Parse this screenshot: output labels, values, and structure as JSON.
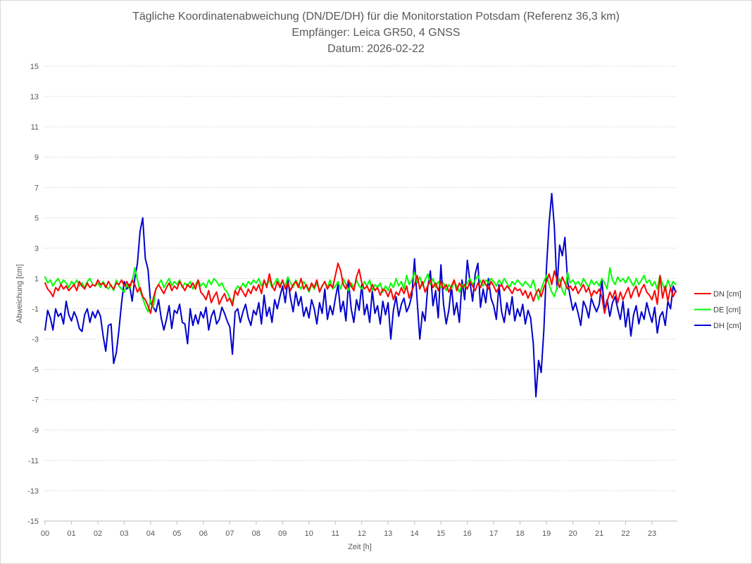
{
  "chart_data": {
    "type": "line",
    "title_lines": [
      "Tägliche Koordinatenabweichung (DN/DE/DH) für die Monitorstation Potsdam (Referenz 36,3 km)",
      "Empfänger: Leica GR50, 4 GNSS",
      "Datum: 2026-02-22"
    ],
    "xlabel": "Zeit [h]",
    "ylabel": "Abweichung [cm]",
    "xlim": [
      0,
      24
    ],
    "ylim": [
      -15,
      15
    ],
    "y_ticks": [
      -15,
      -13,
      -11,
      -9,
      -7,
      -5,
      -3,
      -1,
      1,
      3,
      5,
      7,
      9,
      11,
      13,
      15
    ],
    "x_ticks": [
      0,
      1,
      2,
      3,
      4,
      5,
      6,
      7,
      8,
      9,
      10,
      11,
      12,
      13,
      14,
      15,
      16,
      17,
      18,
      19,
      20,
      21,
      22,
      23
    ],
    "x_tick_labels": [
      "00",
      "01",
      "02",
      "03",
      "04",
      "05",
      "06",
      "07",
      "08",
      "09",
      "10",
      "11",
      "12",
      "13",
      "14",
      "15",
      "16",
      "17",
      "18",
      "19",
      "20",
      "21",
      "22",
      "23"
    ],
    "grid": "horizontal",
    "legend": "right",
    "x_start": 0,
    "x_step": 0.1,
    "series": [
      {
        "name": "DN [cm]",
        "color": "#ff0000",
        "values": [
          0.7,
          0.3,
          0.1,
          -0.2,
          0.4,
          0.2,
          0.6,
          0.3,
          0.5,
          0.2,
          0.4,
          0.6,
          0.2,
          0.8,
          0.5,
          0.3,
          0.7,
          0.4,
          0.6,
          0.5,
          0.9,
          0.6,
          0.7,
          0.4,
          0.8,
          0.5,
          0.3,
          0.7,
          0.6,
          0.9,
          0.5,
          0.8,
          0.4,
          0.9,
          0.6,
          0.1,
          0.4,
          -0.2,
          -0.4,
          -0.8,
          -1.3,
          -0.3,
          0.3,
          0.6,
          0.3,
          0.0,
          0.4,
          0.7,
          0.2,
          0.5,
          0.3,
          0.8,
          0.5,
          0.2,
          0.6,
          0.4,
          0.7,
          0.3,
          0.9,
          0.1,
          -0.1,
          -0.4,
          0.2,
          -0.6,
          -0.2,
          0.1,
          -0.7,
          -0.3,
          0.0,
          -0.5,
          -0.3,
          -0.8,
          0.2,
          -0.1,
          0.4,
          0.1,
          -0.2,
          0.3,
          0.0,
          0.5,
          0.2,
          0.6,
          0.0,
          0.9,
          0.4,
          1.3,
          0.5,
          0.2,
          0.8,
          0.4,
          0.9,
          0.3,
          0.7,
          0.2,
          0.6,
          0.8,
          0.4,
          1.0,
          0.3,
          0.6,
          0.2,
          0.7,
          0.4,
          0.9,
          0.1,
          0.5,
          0.8,
          0.3,
          0.6,
          0.4,
          1.2,
          2.0,
          1.5,
          0.6,
          0.3,
          0.9,
          0.5,
          0.2,
          1.1,
          1.6,
          0.7,
          0.3,
          0.5,
          0.1,
          0.6,
          0.2,
          0.4,
          -0.1,
          0.3,
          0.2,
          -0.2,
          0.3,
          -0.4,
          0.1,
          -0.1,
          0.4,
          0.0,
          0.5,
          -0.3,
          0.2,
          0.6,
          1.2,
          0.3,
          0.8,
          0.1,
          0.5,
          0.9,
          0.4,
          0.7,
          0.2,
          0.8,
          0.3,
          0.6,
          0.1,
          0.5,
          0.9,
          0.2,
          0.7,
          0.4,
          0.6,
          0.3,
          0.8,
          0.5,
          0.2,
          0.7,
          0.4,
          0.9,
          0.6,
          0.3,
          0.8,
          0.5,
          0.1,
          0.4,
          0.6,
          0.2,
          0.5,
          0.3,
          0.0,
          0.4,
          0.2,
          0.3,
          -0.1,
          0.2,
          -0.3,
          0.1,
          -0.5,
          0.0,
          0.3,
          -0.2,
          0.4,
          0.8,
          1.3,
          0.6,
          1.5,
          0.9,
          0.4,
          1.1,
          0.7,
          0.3,
          0.5,
          0.2,
          0.5,
          0.0,
          0.3,
          0.6,
          0.1,
          0.4,
          -0.2,
          0.2,
          0.0,
          0.3,
          -0.2,
          -1.3,
          -0.5,
          0.1,
          -0.3,
          0.2,
          -0.6,
          0.1,
          -0.4,
          0.0,
          0.4,
          -0.3,
          0.2,
          0.5,
          -0.2,
          0.3,
          0.6,
          0.1,
          -0.1,
          -0.4,
          0.2,
          -0.7,
          1.2,
          -0.3,
          0.5,
          -0.5,
          0.4,
          -0.2,
          0.2
        ]
      },
      {
        "name": "DE [cm]",
        "color": "#00ff00",
        "values": [
          1.1,
          0.7,
          0.9,
          0.5,
          0.8,
          1.0,
          0.6,
          0.9,
          0.7,
          0.4,
          0.8,
          0.6,
          0.9,
          0.5,
          0.7,
          0.4,
          0.8,
          1.0,
          0.6,
          0.5,
          0.7,
          0.4,
          0.8,
          0.5,
          0.3,
          0.6,
          0.2,
          0.9,
          0.5,
          0.3,
          0.1,
          0.6,
          0.3,
          0.8,
          1.7,
          0.9,
          0.2,
          -0.3,
          -0.8,
          -1.2,
          -0.4,
          -0.9,
          0.3,
          0.6,
          0.9,
          0.4,
          0.7,
          1.0,
          0.5,
          0.8,
          0.6,
          0.9,
          0.4,
          0.7,
          0.5,
          0.8,
          0.3,
          0.6,
          0.9,
          0.5,
          0.7,
          0.4,
          0.9,
          0.6,
          1.0,
          0.8,
          0.5,
          0.7,
          0.3,
          0.1,
          -0.3,
          -0.6,
          0.2,
          0.5,
          0.3,
          0.7,
          0.4,
          0.8,
          0.6,
          0.9,
          0.7,
          1.0,
          0.5,
          0.8,
          0.6,
          0.9,
          0.4,
          0.7,
          1.0,
          0.6,
          0.8,
          0.5,
          1.1,
          0.7,
          0.4,
          0.9,
          0.6,
          0.3,
          0.8,
          0.5,
          0.1,
          0.6,
          0.3,
          0.7,
          0.2,
          0.5,
          0.8,
          0.4,
          0.9,
          0.3,
          0.5,
          0.8,
          0.3,
          1.0,
          0.6,
          0.2,
          0.7,
          0.4,
          0.9,
          0.5,
          0.3,
          0.8,
          0.5,
          0.9,
          0.2,
          0.6,
          0.4,
          0.7,
          0.1,
          0.5,
          0.2,
          0.7,
          0.4,
          1.0,
          0.5,
          0.8,
          0.3,
          1.2,
          0.6,
          0.9,
          1.4,
          0.7,
          1.1,
          0.5,
          0.9,
          1.3,
          0.6,
          1.0,
          0.4,
          0.8,
          0.4,
          0.7,
          0.2,
          0.6,
          0.3,
          0.8,
          0.5,
          0.1,
          0.6,
          0.4,
          0.7,
          1.0,
          0.6,
          0.9,
          1.2,
          0.8,
          0.5,
          0.9,
          0.7,
          1.0,
          0.8,
          0.5,
          0.9,
          0.6,
          1.0,
          0.7,
          0.4,
          0.8,
          0.6,
          0.9,
          0.7,
          0.5,
          0.8,
          0.6,
          0.4,
          0.9,
          0.2,
          -0.4,
          0.3,
          0.8,
          1.2,
          0.6,
          0.1,
          -0.2,
          0.4,
          1.0,
          0.2,
          -0.1,
          1.4,
          0.7,
          0.9,
          0.6,
          0.8,
          0.5,
          1.0,
          0.7,
          0.4,
          0.9,
          0.6,
          0.8,
          0.5,
          1.0,
          0.7,
          0.3,
          1.7,
          0.9,
          0.6,
          1.1,
          0.8,
          1.0,
          0.7,
          1.1,
          0.8,
          0.5,
          1.0,
          0.6,
          0.9,
          1.2,
          0.7,
          0.9,
          0.5,
          0.8,
          0.3,
          1.2,
          0.6,
          0.2,
          0.9,
          0.4,
          0.8,
          0.6
        ]
      },
      {
        "name": "DH [cm]",
        "color": "#0000cc",
        "values": [
          -2.4,
          -1.1,
          -1.6,
          -2.4,
          -1.0,
          -1.5,
          -1.3,
          -2.0,
          -0.5,
          -1.4,
          -1.8,
          -1.2,
          -1.6,
          -2.3,
          -2.5,
          -1.4,
          -1.0,
          -1.9,
          -1.2,
          -1.6,
          -1.1,
          -1.5,
          -2.8,
          -3.8,
          -2.1,
          -2.0,
          -4.6,
          -3.9,
          -2.4,
          -0.6,
          0.8,
          0.3,
          0.6,
          -0.5,
          1.0,
          2.0,
          4.1,
          5.0,
          2.3,
          1.6,
          -0.6,
          -0.9,
          -1.2,
          -0.4,
          -1.6,
          -2.4,
          -1.7,
          -0.8,
          -2.3,
          -1.1,
          -1.3,
          -0.7,
          -1.9,
          -2.0,
          -3.3,
          -1.0,
          -2.1,
          -1.4,
          -2.0,
          -1.2,
          -1.6,
          -0.9,
          -2.4,
          -1.5,
          -1.1,
          -2.0,
          -1.7,
          -0.9,
          -1.3,
          -1.8,
          -2.2,
          -4.0,
          -1.2,
          -1.0,
          -1.9,
          -1.2,
          -0.7,
          -1.6,
          -2.1,
          -1.1,
          -1.4,
          -0.6,
          -2.0,
          -0.1,
          -1.5,
          -0.9,
          -1.9,
          -0.4,
          -1.0,
          -0.2,
          0.5,
          -0.6,
          0.9,
          -0.3,
          -1.2,
          0.1,
          -0.8,
          -0.2,
          -1.5,
          -0.9,
          -1.6,
          -0.4,
          -1.0,
          -2.0,
          -0.6,
          -1.3,
          0.3,
          -1.7,
          -0.8,
          -1.4,
          -0.3,
          0.6,
          -1.2,
          -0.5,
          -1.8,
          0.8,
          -1.0,
          -1.9,
          -0.4,
          -1.1,
          0.6,
          -1.4,
          -0.7,
          -1.9,
          0.2,
          -1.3,
          -0.8,
          -2.0,
          -0.5,
          -1.4,
          -0.6,
          -3.0,
          -1.1,
          -0.2,
          -1.5,
          -0.7,
          -0.3,
          -1.2,
          -0.8,
          -0.1,
          2.3,
          -0.5,
          -3.0,
          -1.2,
          -1.8,
          0.4,
          1.5,
          -0.8,
          0.2,
          -1.6,
          1.9,
          -0.7,
          -2.0,
          -1.1,
          0.5,
          -1.4,
          -0.6,
          -1.9,
          0.9,
          -0.4,
          2.2,
          0.8,
          -0.5,
          1.3,
          2.0,
          -0.9,
          0.3,
          -0.6,
          1.0,
          -0.3,
          -0.8,
          -1.7,
          0.6,
          -1.2,
          -1.9,
          -0.6,
          -1.4,
          -0.2,
          -1.8,
          -1.0,
          -1.5,
          -0.7,
          -2.0,
          -1.1,
          -1.6,
          -3.3,
          -6.8,
          -4.4,
          -5.2,
          -2.4,
          1.7,
          4.7,
          6.6,
          4.4,
          0.3,
          3.2,
          2.5,
          3.7,
          0.8,
          -0.2,
          -1.1,
          -0.6,
          -1.3,
          -2.1,
          -0.5,
          -0.9,
          -1.6,
          -0.3,
          -0.8,
          -1.2,
          -0.7,
          0.9,
          -1.1,
          -0.4,
          -1.5,
          -0.6,
          -0.2,
          -1.0,
          -1.7,
          -0.5,
          -2.2,
          -1.0,
          -2.8,
          -1.4,
          -0.8,
          -2.0,
          -1.2,
          -1.7,
          -0.6,
          -1.3,
          -1.9,
          -0.9,
          -2.6,
          -1.5,
          -1.2,
          -2.1,
          -0.5,
          -1.0,
          0.5,
          0.1
        ]
      }
    ]
  }
}
